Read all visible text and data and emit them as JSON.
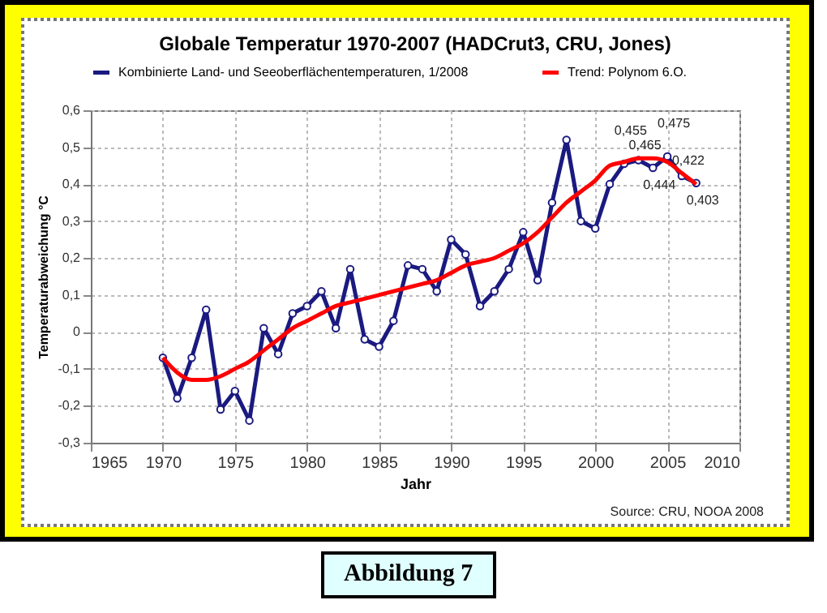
{
  "chart_data": {
    "type": "line",
    "title": "Globale Temperatur 1970-2007 (HADCrut3, CRU,  Jones)",
    "xlabel": "Jahr",
    "ylabel": "Temperaturabweichung °C",
    "x": [
      1970,
      1971,
      1972,
      1973,
      1974,
      1975,
      1976,
      1977,
      1978,
      1979,
      1980,
      1981,
      1982,
      1983,
      1984,
      1985,
      1986,
      1987,
      1988,
      1989,
      1990,
      1991,
      1992,
      1993,
      1994,
      1995,
      1996,
      1997,
      1998,
      1999,
      2000,
      2001,
      2002,
      2003,
      2004,
      2005,
      2006,
      2007
    ],
    "series": [
      {
        "name": "Kombinierte Land- und Seeoberflächentemperaturen, 1/2008",
        "color": "#1a1a80",
        "marker": "circle",
        "values": [
          -0.07,
          -0.18,
          -0.07,
          0.06,
          -0.21,
          -0.16,
          -0.24,
          0.01,
          -0.06,
          0.05,
          0.07,
          0.11,
          0.01,
          0.17,
          -0.02,
          -0.04,
          0.03,
          0.18,
          0.17,
          0.11,
          0.25,
          0.21,
          0.07,
          0.11,
          0.17,
          0.27,
          0.14,
          0.35,
          0.52,
          0.3,
          0.28,
          0.4,
          0.455,
          0.465,
          0.444,
          0.475,
          0.422,
          0.403
        ],
        "value_labels": [
          null,
          null,
          null,
          null,
          null,
          null,
          null,
          null,
          null,
          null,
          null,
          null,
          null,
          null,
          null,
          null,
          null,
          null,
          null,
          null,
          null,
          null,
          null,
          null,
          null,
          null,
          null,
          null,
          null,
          null,
          null,
          null,
          "0,455",
          "0,465",
          "0,444",
          "0,475",
          "0,422",
          "0,403"
        ]
      },
      {
        "name": "Trend: Polynom 6.O.",
        "color": "#ff0000",
        "marker": "none",
        "values": [
          -0.07,
          -0.11,
          -0.13,
          -0.13,
          -0.12,
          -0.1,
          -0.08,
          -0.05,
          -0.02,
          0.01,
          0.03,
          0.05,
          0.07,
          0.08,
          0.09,
          0.1,
          0.11,
          0.12,
          0.13,
          0.14,
          0.16,
          0.18,
          0.19,
          0.2,
          0.22,
          0.24,
          0.27,
          0.31,
          0.35,
          0.38,
          0.41,
          0.45,
          0.46,
          0.47,
          0.47,
          0.46,
          0.43,
          0.4
        ]
      }
    ],
    "xlim": [
      1965,
      2010
    ],
    "xticks": [
      1965,
      1970,
      1975,
      1980,
      1985,
      1990,
      1995,
      2000,
      2005,
      2010
    ],
    "ylim": [
      -0.3,
      0.6
    ],
    "yticks": [
      {
        "value": -0.3,
        "label": "-0,3"
      },
      {
        "value": -0.2,
        "label": "-0,2"
      },
      {
        "value": -0.1,
        "label": "-0,1"
      },
      0,
      {
        "value": 0.1,
        "label": "0,1"
      },
      {
        "value": 0.2,
        "label": "0,2"
      },
      {
        "value": 0.3,
        "label": "0,3"
      },
      {
        "value": 0.4,
        "label": "0,4"
      },
      {
        "value": 0.5,
        "label": "0,5"
      },
      {
        "value": 0.6,
        "label": "0,6"
      }
    ],
    "grid": true,
    "legend": "top",
    "line_style": "solid",
    "annotations": [
      "Source: CRU, NOOA 2008",
      "Abbildung 7"
    ]
  }
}
